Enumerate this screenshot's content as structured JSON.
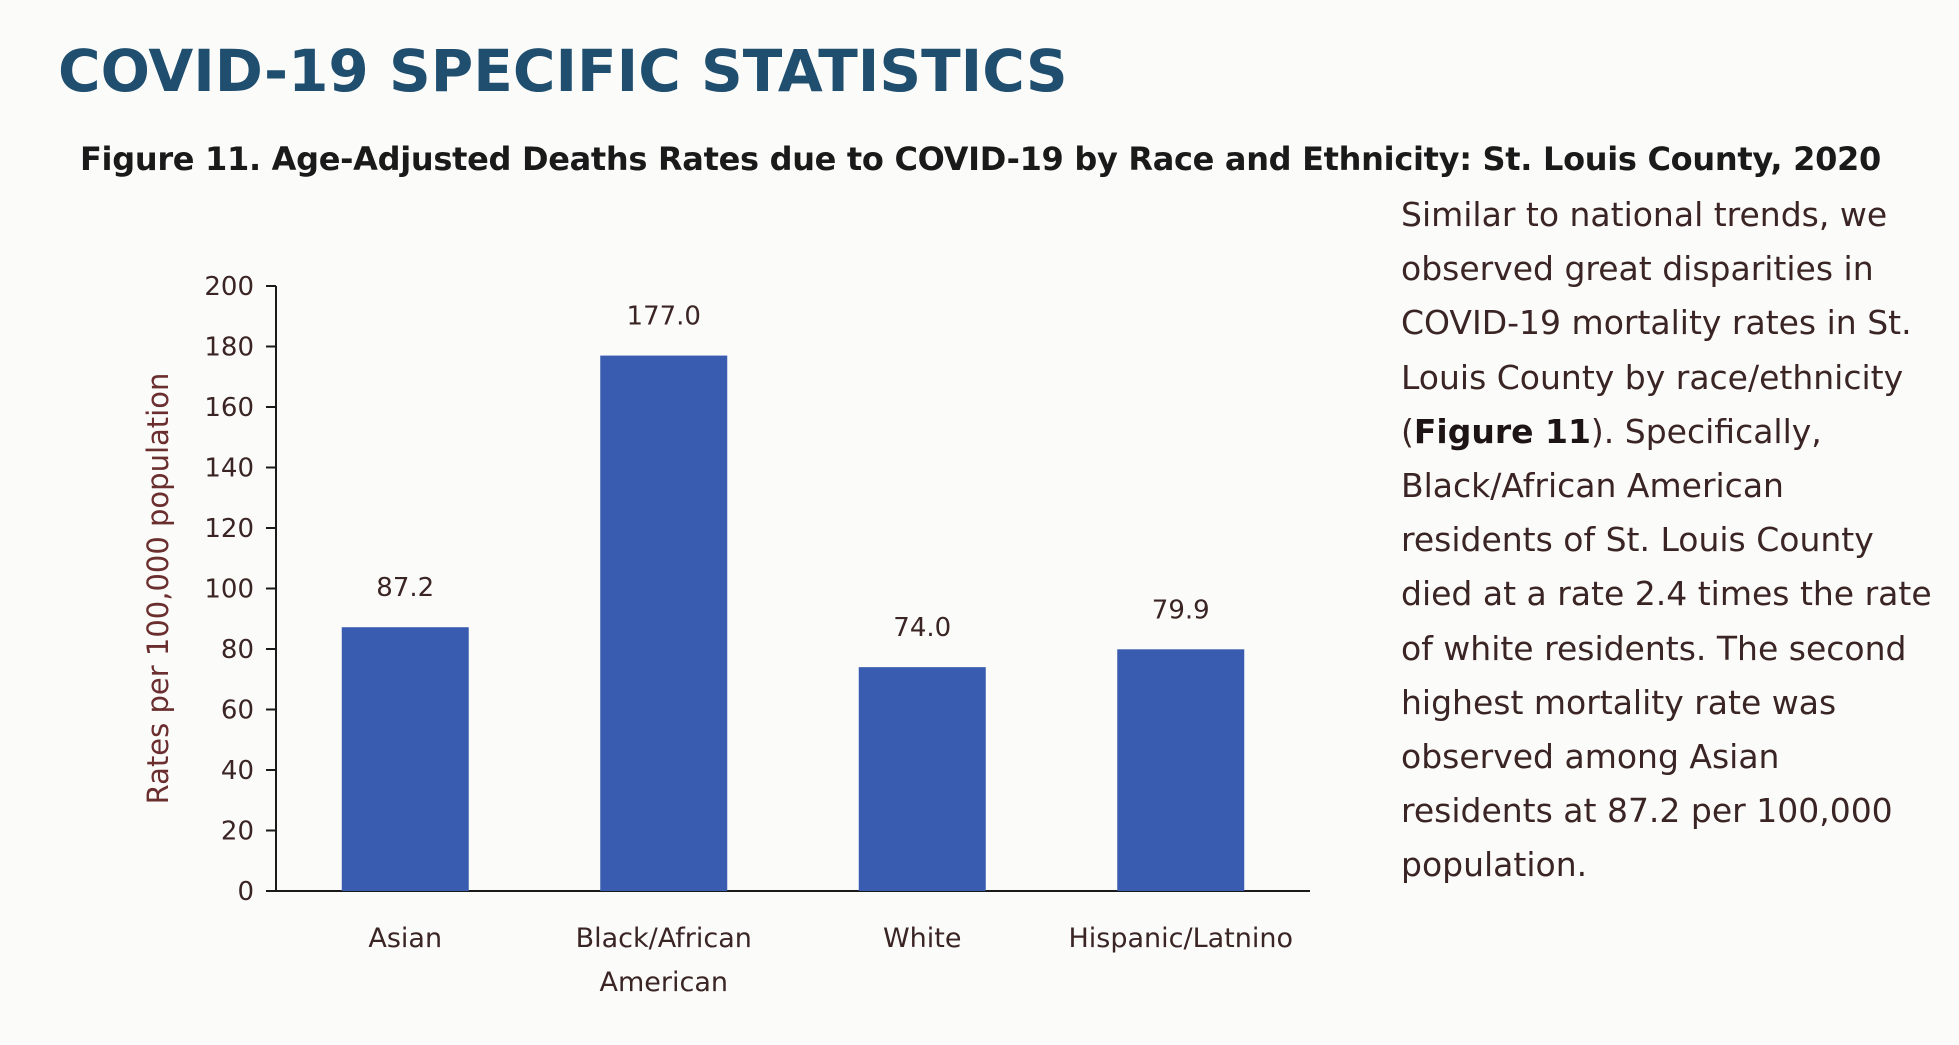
{
  "colors": {
    "heading": "#1f4e6e",
    "bar": "#3a5cb0",
    "axis_text": "#3a2424",
    "ylabel": "#6b2e2e"
  },
  "heading": "COVID-19 SPECIFIC STATISTICS",
  "caption": "Figure 11. Age-Adjusted Deaths Rates due to COVID-19 by Race and Ethnicity: St. Louis County, 2020",
  "paragraph": {
    "text_before": "Similar to national trends, we observed great disparities in COVID-19 mortality rates in St. Louis County by race/ethnicity (",
    "emphasis": "Figure 11",
    "text_after": "). Specifically, Black/African American residents of St. Louis County died at a rate 2.4 times the rate of white residents. The second highest mortality rate was observed among Asian residents at 87.2 per 100,000 population."
  },
  "chart_data": {
    "type": "bar",
    "title": "",
    "categories": [
      [
        "Asian"
      ],
      [
        "Black/African",
        "American"
      ],
      [
        "White"
      ],
      [
        "Hispanic/Latnino"
      ]
    ],
    "values": [
      87.2,
      177.0,
      74.0,
      79.9
    ],
    "value_labels": [
      "87.2",
      "177.0",
      "74.0",
      "79.9"
    ],
    "xlabel": "",
    "ylabel": "Rates per 100,000 population",
    "ylim": [
      0,
      200
    ],
    "yticks": [
      0,
      20,
      40,
      60,
      80,
      100,
      120,
      140,
      160,
      180,
      200
    ],
    "grid": false,
    "legend": "none"
  }
}
